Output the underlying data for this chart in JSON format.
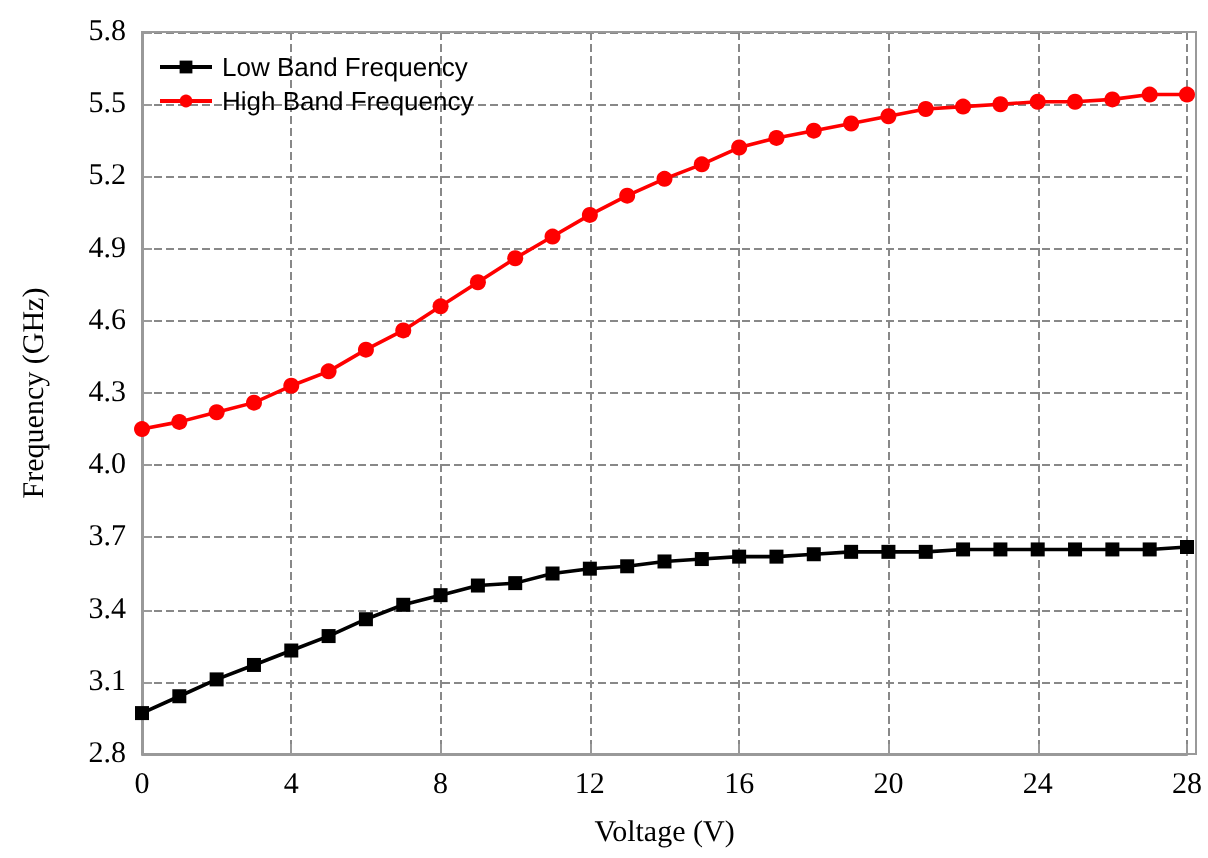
{
  "chart_data": {
    "type": "line",
    "xlabel": "Voltage (V)",
    "ylabel": "Frequency (GHz)",
    "x": [
      0,
      1,
      2,
      3,
      4,
      5,
      6,
      7,
      8,
      9,
      10,
      11,
      12,
      13,
      14,
      15,
      16,
      17,
      18,
      19,
      20,
      21,
      22,
      23,
      24,
      25,
      26,
      27,
      28
    ],
    "series": [
      {
        "name": "Low Band Frequency",
        "color": "#000000",
        "marker": "square",
        "values": [
          2.97,
          3.04,
          3.11,
          3.17,
          3.23,
          3.29,
          3.36,
          3.42,
          3.46,
          3.5,
          3.51,
          3.55,
          3.57,
          3.58,
          3.6,
          3.61,
          3.62,
          3.62,
          3.63,
          3.64,
          3.64,
          3.64,
          3.65,
          3.65,
          3.65,
          3.65,
          3.65,
          3.65,
          3.66
        ]
      },
      {
        "name": "High Band Frequency",
        "color": "#ff0000",
        "marker": "circle",
        "values": [
          4.15,
          4.18,
          4.22,
          4.26,
          4.33,
          4.39,
          4.48,
          4.56,
          4.66,
          4.76,
          4.86,
          4.95,
          5.04,
          5.12,
          5.19,
          5.25,
          5.32,
          5.36,
          5.39,
          5.42,
          5.45,
          5.48,
          5.49,
          5.5,
          5.51,
          5.51,
          5.52,
          5.54,
          5.54
        ]
      }
    ],
    "xlim": [
      0,
      28
    ],
    "xticks": [
      0,
      4,
      8,
      12,
      16,
      20,
      24,
      28
    ],
    "ylim": [
      2.8,
      5.8
    ],
    "yticks": [
      2.8,
      3.1,
      3.4,
      3.7,
      {
        "value": 4,
        "label": "4.0"
      },
      4.3,
      4.6,
      4.9,
      5.2,
      5.5,
      5.8
    ],
    "grid": true,
    "legend": "top left",
    "line_style": "solid"
  }
}
